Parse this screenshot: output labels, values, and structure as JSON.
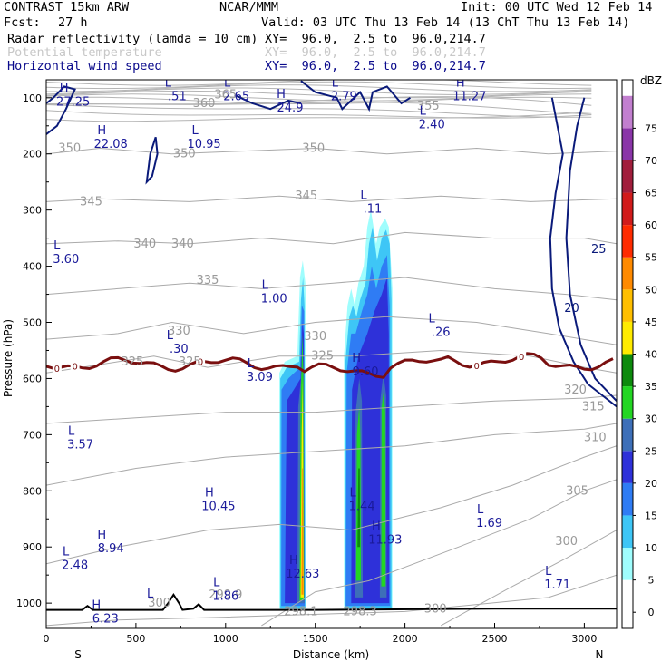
{
  "header": {
    "model": "CONTRAST 15km ARW",
    "center": "NCAR/MMM",
    "init": "Init: 00 UTC Wed 12 Feb 14",
    "fcst_label": "Fcst:",
    "fcst_value": "27 h",
    "valid": "Valid: 03 UTC Thu 13 Feb 14 (13 ChT Thu 13 Feb 14)",
    "fields": [
      {
        "name": "Radar reflectivity (lamda = 10 cm)",
        "xy": "XY=  96.0,  2.5 to  96.0,214.7"
      },
      {
        "name": "Potential temperature",
        "xy": "XY=  96.0,  2.5 to  96.0,214.7"
      },
      {
        "name": "Horizontal wind speed",
        "xy": "XY=  96.0,  2.5 to  96.0,214.7"
      }
    ]
  },
  "chart_data": {
    "type": "contour",
    "xlabel": "Distance (km)",
    "ylabel": "Pressure (hPa)",
    "xlim": [
      0,
      3180
    ],
    "ylim": [
      1045,
      68
    ],
    "x_ticks": [
      0,
      500,
      1000,
      1500,
      2000,
      2500,
      3000
    ],
    "x_tick_labels": [
      "0",
      "500",
      "1000",
      "1500",
      "2000",
      "2500",
      "3000"
    ],
    "y_ticks": [
      100,
      200,
      300,
      400,
      500,
      600,
      700,
      800,
      900,
      1000
    ],
    "y_tick_labels": [
      "100",
      "200",
      "300",
      "400",
      "500",
      "600",
      "700",
      "800",
      "900",
      "1000"
    ],
    "endpoints": {
      "left": "S",
      "right": "N"
    },
    "colorbar": {
      "title": "dBZ",
      "levels": [
        0,
        5,
        10,
        15,
        20,
        25,
        30,
        35,
        40,
        45,
        50,
        55,
        60,
        65,
        70,
        75
      ],
      "colors": [
        "#ffffff",
        "#9ffdfd",
        "#3ec6f6",
        "#2f7cf4",
        "#2e31d9",
        "#3d6fb8",
        "#23d623",
        "#0d8a0d",
        "#ffeb00",
        "#ffbf00",
        "#ff8a00",
        "#ff2b00",
        "#d11b1b",
        "#a11e3c",
        "#8a35a8",
        "#c27fcf"
      ]
    },
    "reflectivity_cells": [
      {
        "x_range": [
          1300,
          1450
        ],
        "top_hpa": 390,
        "max_dbz": 50
      },
      {
        "x_range": [
          1660,
          1930
        ],
        "top_hpa": 320,
        "max_dbz": 35
      }
    ],
    "theta_labels": [
      {
        "x": 880,
        "p": 110,
        "text": "360"
      },
      {
        "x": 1000,
        "p": 95,
        "text": "365"
      },
      {
        "x": 2130,
        "p": 115,
        "text": "355"
      },
      {
        "x": 130,
        "p": 190,
        "text": "350"
      },
      {
        "x": 770,
        "p": 200,
        "text": "350"
      },
      {
        "x": 1490,
        "p": 190,
        "text": "350"
      },
      {
        "x": 250,
        "p": 285,
        "text": "345"
      },
      {
        "x": 1450,
        "p": 275,
        "text": "345"
      },
      {
        "x": 550,
        "p": 360,
        "text": "340"
      },
      {
        "x": 760,
        "p": 360,
        "text": "340"
      },
      {
        "x": 900,
        "p": 425,
        "text": "335"
      },
      {
        "x": 1500,
        "p": 525,
        "text": "330"
      },
      {
        "x": 740,
        "p": 515,
        "text": "330"
      },
      {
        "x": 480,
        "p": 570,
        "text": "325"
      },
      {
        "x": 800,
        "p": 570,
        "text": "325"
      },
      {
        "x": 1540,
        "p": 560,
        "text": "325"
      },
      {
        "x": 2950,
        "p": 620,
        "text": "320"
      },
      {
        "x": 3050,
        "p": 650,
        "text": "315"
      },
      {
        "x": 3060,
        "p": 705,
        "text": "310"
      },
      {
        "x": 2960,
        "p": 800,
        "text": "305"
      },
      {
        "x": 2900,
        "p": 890,
        "text": "300"
      },
      {
        "x": 630,
        "p": 1000,
        "text": "300"
      },
      {
        "x": 2170,
        "p": 1010,
        "text": "300"
      },
      {
        "x": 1000,
        "p": 985,
        "text": "299.9"
      },
      {
        "x": 1420,
        "p": 1015,
        "text": "298.1"
      },
      {
        "x": 1750,
        "p": 1015,
        "text": "298.3"
      }
    ],
    "zero_isotherm_labels": [
      {
        "x": 60,
        "text": "0"
      },
      {
        "x": 160,
        "text": "0"
      },
      {
        "x": 860,
        "text": "0"
      },
      {
        "x": 2400,
        "text": "0"
      },
      {
        "x": 2650,
        "text": "0"
      }
    ],
    "wind_labels": [
      {
        "x": 3080,
        "p": 370,
        "text": "25"
      },
      {
        "x": 2930,
        "p": 475,
        "text": "20"
      }
    ],
    "extrema": [
      {
        "x": 150,
        "p": 90,
        "letter": "H",
        "value": "27.25"
      },
      {
        "x": 730,
        "p": 80,
        "letter": "L",
        "value": ".51"
      },
      {
        "x": 1060,
        "p": 80,
        "letter": "L",
        "value": "2.65"
      },
      {
        "x": 1360,
        "p": 100,
        "letter": "H",
        "value": "24.9"
      },
      {
        "x": 1660,
        "p": 80,
        "letter": "L",
        "value": "2.79"
      },
      {
        "x": 2360,
        "p": 80,
        "letter": "H",
        "value": "11.27"
      },
      {
        "x": 2150,
        "p": 130,
        "letter": "L",
        "value": "2.40"
      },
      {
        "x": 360,
        "p": 165,
        "letter": "H",
        "value": "22.08"
      },
      {
        "x": 880,
        "p": 165,
        "letter": "L",
        "value": "10.95"
      },
      {
        "x": 1820,
        "p": 280,
        "letter": "L",
        "value": ".11"
      },
      {
        "x": 110,
        "p": 370,
        "letter": "L",
        "value": "3.60"
      },
      {
        "x": 1270,
        "p": 440,
        "letter": "L",
        "value": "1.00"
      },
      {
        "x": 2200,
        "p": 500,
        "letter": "L",
        "value": ".26"
      },
      {
        "x": 740,
        "p": 530,
        "letter": "L",
        "value": ".30"
      },
      {
        "x": 1190,
        "p": 580,
        "letter": "L",
        "value": "3.09"
      },
      {
        "x": 1780,
        "p": 570,
        "letter": "H",
        "value": "9.60"
      },
      {
        "x": 190,
        "p": 700,
        "letter": "L",
        "value": "3.57"
      },
      {
        "x": 960,
        "p": 810,
        "letter": "H",
        "value": "10.45"
      },
      {
        "x": 1760,
        "p": 810,
        "letter": "L",
        "value": "1.44"
      },
      {
        "x": 2470,
        "p": 840,
        "letter": "L",
        "value": "1.69"
      },
      {
        "x": 1890,
        "p": 870,
        "letter": "H",
        "value": "11.93"
      },
      {
        "x": 360,
        "p": 885,
        "letter": "H",
        "value": "8.94"
      },
      {
        "x": 160,
        "p": 915,
        "letter": "L",
        "value": "2.48"
      },
      {
        "x": 1430,
        "p": 930,
        "letter": "H",
        "value": "12.63"
      },
      {
        "x": 2850,
        "p": 950,
        "letter": "L",
        "value": "1.71"
      },
      {
        "x": 1000,
        "p": 970,
        "letter": "L",
        "value": "1.86"
      },
      {
        "x": 330,
        "p": 1010,
        "letter": "H",
        "value": "6.23"
      },
      {
        "x": 630,
        "p": 990,
        "letter": "L",
        "value": ""
      }
    ]
  }
}
